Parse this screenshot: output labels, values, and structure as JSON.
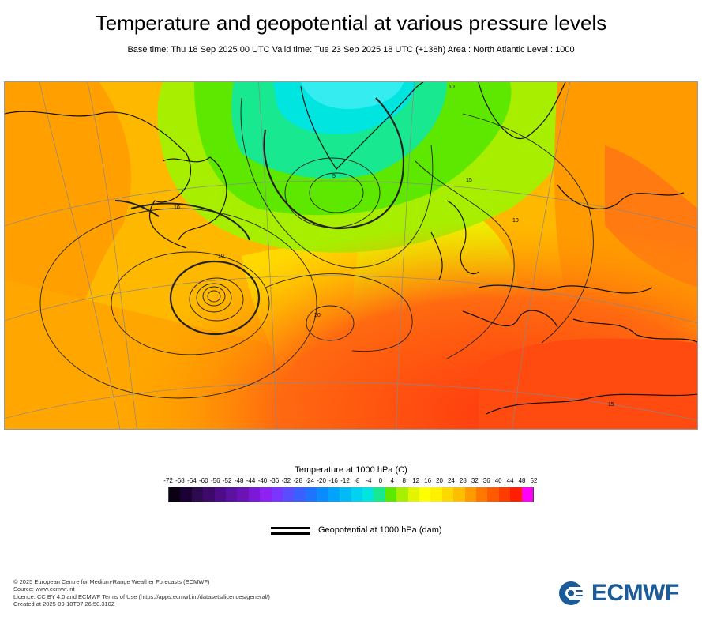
{
  "header": {
    "title": "Temperature and geopotential at various pressure levels",
    "subtitle": "Base time: Thu 18 Sep 2025 00 UTC Valid time: Tue 23 Sep 2025 18 UTC (+138h) Area : North Atlantic Level : 1000"
  },
  "map": {
    "contour_labels": [
      "10",
      "10",
      "20",
      "5",
      "10",
      "10",
      "15",
      "15"
    ],
    "colors": {
      "cold_green": "#3ee06a",
      "cyan": "#35e8d8",
      "yellow": "#ffee00",
      "light_orange": "#ffcc00",
      "orange": "#ff9f00",
      "dark_orange": "#ff6a10",
      "red": "#ff3a10"
    }
  },
  "colorbar": {
    "title": "Temperature at 1000 hPa (C)",
    "ticks": [
      "-72",
      "-68",
      "-64",
      "-60",
      "-56",
      "-52",
      "-48",
      "-44",
      "-40",
      "-36",
      "-32",
      "-28",
      "-24",
      "-20",
      "-16",
      "-12",
      "-8",
      "-4",
      "0",
      "4",
      "8",
      "12",
      "16",
      "20",
      "24",
      "28",
      "32",
      "36",
      "40",
      "44",
      "48",
      "52"
    ],
    "colors": [
      "#0c0014",
      "#1a0033",
      "#2e0a4f",
      "#3d0a6b",
      "#4e0c88",
      "#5c12a0",
      "#6a14b8",
      "#7b19d6",
      "#8e22f2",
      "#7a36ff",
      "#5a4cff",
      "#3a60ff",
      "#1e74ff",
      "#0a8cff",
      "#00a4ff",
      "#00bbf5",
      "#00d2f0",
      "#00e5e0",
      "#18e890",
      "#5ee800",
      "#a8ee00",
      "#e4f400",
      "#ffff00",
      "#fff000",
      "#ffd800",
      "#ffbe00",
      "#ff9a00",
      "#ff7800",
      "#ff5a00",
      "#ff3c00",
      "#ff1e00",
      "#ff00ff"
    ]
  },
  "geo_legend": {
    "label": "Geopotential at 1000 hPa (dam)"
  },
  "footer": {
    "lines": [
      "© 2025 European Centre for Medium-Range Weather Forecasts (ECMWF)",
      "Source: www.ecmwf.int",
      "Licence: CC BY 4.0 and ECMWF Terms of Use (https://apps.ecmwf.int/datasets/licences/general/)",
      "Created at 2025-09-18T07:26:50.310Z"
    ]
  },
  "logo": {
    "text": "ECMWF",
    "color": "#1c5b9a"
  }
}
